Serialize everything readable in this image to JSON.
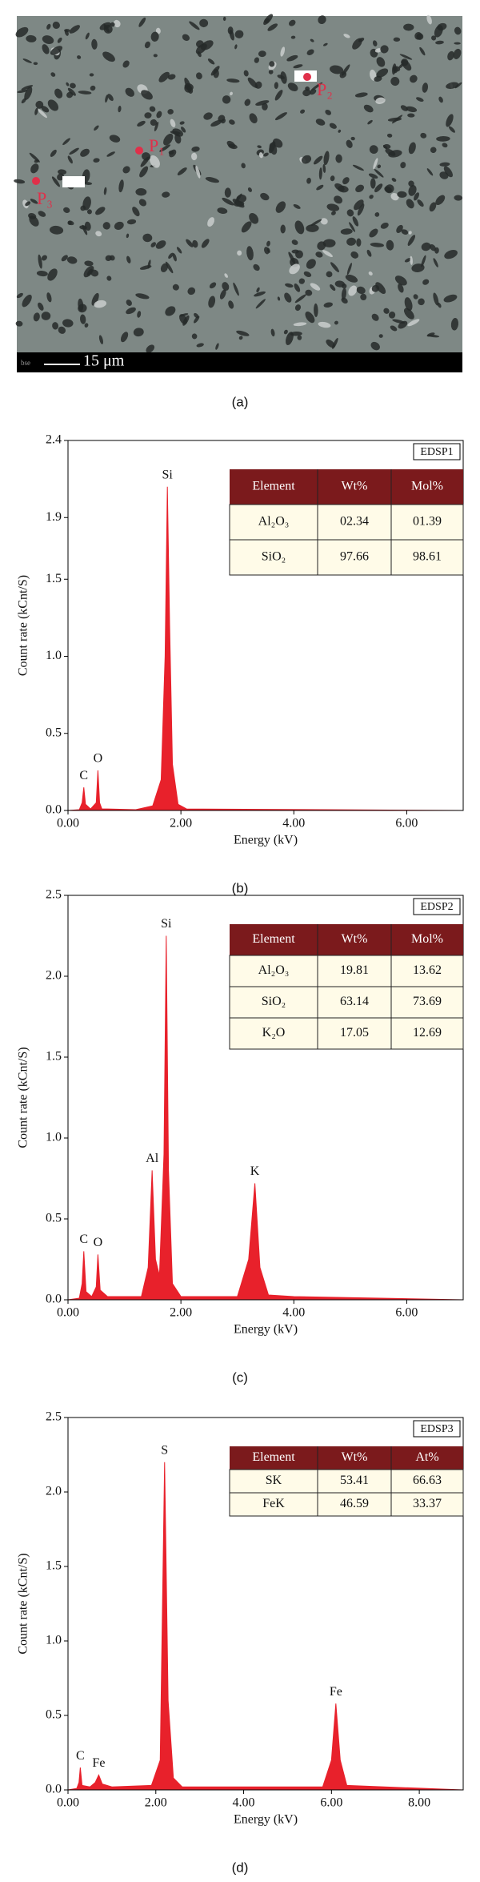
{
  "image": {
    "points": [
      "P₁",
      "P₂",
      "P₃"
    ],
    "corner_text": "bse",
    "scale_bar": "15 μm",
    "caption": "(a)"
  },
  "chart_data": [
    {
      "type": "spectrum",
      "caption": "(b)",
      "box_label": "EDSP1",
      "color": "#e8212b",
      "xlabel": "Energy (kV)",
      "ylabel": "Count rate (kCnt/S)",
      "xlim": [
        0,
        7
      ],
      "xticks": [
        {
          "value": 0,
          "label": "0.00"
        },
        {
          "value": 2,
          "label": "2.00"
        },
        {
          "value": 4,
          "label": "4.00"
        },
        {
          "value": 6,
          "label": "6.00"
        }
      ],
      "ylim": [
        0,
        2.4
      ],
      "yticks": [
        {
          "value": 0,
          "label": "0.0"
        },
        0.5,
        {
          "value": 1,
          "label": "1.0"
        },
        1.5,
        1.9,
        2.4
      ],
      "x": [
        0,
        0.2,
        0.25,
        0.28,
        0.31,
        0.4,
        0.5,
        0.53,
        0.56,
        0.6,
        0.7,
        1.2,
        1.5,
        1.65,
        1.72,
        1.76,
        1.8,
        1.85,
        1.95,
        2.1,
        7
      ],
      "values": [
        0,
        0.005,
        0.05,
        0.15,
        0.04,
        0.01,
        0.05,
        0.26,
        0.05,
        0.01,
        0.01,
        0.005,
        0.03,
        0.2,
        1.0,
        2.1,
        1.2,
        0.3,
        0.04,
        0.01,
        0
      ],
      "annotations": [
        "C",
        "O",
        "Si"
      ],
      "table": {
        "header": [
          "Element",
          "Wt%",
          "Mol%"
        ],
        "rows": [
          [
            "Al₂O₃",
            "02.34",
            "01.39"
          ],
          [
            "SiO₂",
            "97.66",
            "98.61"
          ]
        ]
      }
    },
    {
      "type": "spectrum",
      "caption": "(c)",
      "box_label": "EDSP2",
      "color": "#e8212b",
      "xlabel": "Energy (kV)",
      "ylabel": "Count rate (kCnt/S)",
      "xlim": [
        0,
        7
      ],
      "xticks": [
        {
          "value": 0,
          "label": "0.00"
        },
        {
          "value": 2,
          "label": "2.00"
        },
        {
          "value": 4,
          "label": "4.00"
        },
        {
          "value": 6,
          "label": "6.00"
        }
      ],
      "ylim": [
        0,
        2.5
      ],
      "yticks": [
        {
          "value": 0,
          "label": "0.0"
        },
        0.5,
        {
          "value": 1,
          "label": "1.0"
        },
        1.5,
        {
          "value": 2,
          "label": "2.0"
        },
        2.5
      ],
      "x": [
        0,
        0.2,
        0.25,
        0.28,
        0.32,
        0.42,
        0.5,
        0.53,
        0.57,
        0.7,
        1.3,
        1.42,
        1.49,
        1.55,
        1.62,
        1.7,
        1.74,
        1.78,
        1.85,
        2.0,
        3.0,
        3.2,
        3.31,
        3.4,
        3.55,
        4.0,
        7
      ],
      "values": [
        0,
        0.01,
        0.1,
        0.3,
        0.05,
        0.02,
        0.08,
        0.28,
        0.06,
        0.02,
        0.02,
        0.2,
        0.8,
        0.25,
        0.15,
        0.9,
        2.25,
        0.8,
        0.1,
        0.02,
        0.02,
        0.25,
        0.72,
        0.2,
        0.03,
        0.02,
        0
      ],
      "annotations": [
        "C",
        "O",
        "Al",
        "Si",
        "K"
      ],
      "table": {
        "header": [
          "Element",
          "Wt%",
          "Mol%"
        ],
        "rows": [
          [
            "Al₂O₃",
            "19.81",
            "13.62"
          ],
          [
            "SiO₂",
            "63.14",
            "73.69"
          ],
          [
            "K₂O",
            "17.05",
            "12.69"
          ]
        ]
      }
    },
    {
      "type": "spectrum",
      "caption": "(d)",
      "box_label": "EDSP3",
      "color": "#e8212b",
      "xlabel": "Energy (kV)",
      "ylabel": "Count rate (kCnt/S)",
      "xlim": [
        0,
        9
      ],
      "xticks": [
        {
          "value": 0,
          "label": "0.00"
        },
        {
          "value": 2,
          "label": "2.00"
        },
        {
          "value": 4,
          "label": "4.00"
        },
        {
          "value": 6,
          "label": "6.00"
        },
        {
          "value": 8,
          "label": "8.00"
        }
      ],
      "ylim": [
        0,
        2.5
      ],
      "yticks": [
        {
          "value": 0,
          "label": "0.0"
        },
        0.5,
        {
          "value": 1,
          "label": "1.0"
        },
        1.5,
        {
          "value": 2,
          "label": "2.0"
        },
        2.5
      ],
      "x": [
        0,
        0.2,
        0.25,
        0.28,
        0.32,
        0.5,
        0.62,
        0.7,
        0.78,
        1.0,
        1.9,
        2.1,
        2.2,
        2.28,
        2.4,
        2.6,
        5.8,
        6.0,
        6.1,
        6.2,
        6.35,
        9
      ],
      "values": [
        0,
        0.01,
        0.05,
        0.15,
        0.03,
        0.02,
        0.05,
        0.1,
        0.04,
        0.02,
        0.03,
        0.2,
        2.2,
        0.6,
        0.08,
        0.02,
        0.02,
        0.2,
        0.58,
        0.2,
        0.03,
        0
      ],
      "annotations": [
        "C",
        "Fe",
        "S",
        "Fe"
      ],
      "table": {
        "header": [
          "Element",
          "Wt%",
          "At%"
        ],
        "rows": [
          [
            "SK",
            "53.41",
            "66.63"
          ],
          [
            "FeK",
            "46.59",
            "33.37"
          ]
        ]
      }
    }
  ]
}
